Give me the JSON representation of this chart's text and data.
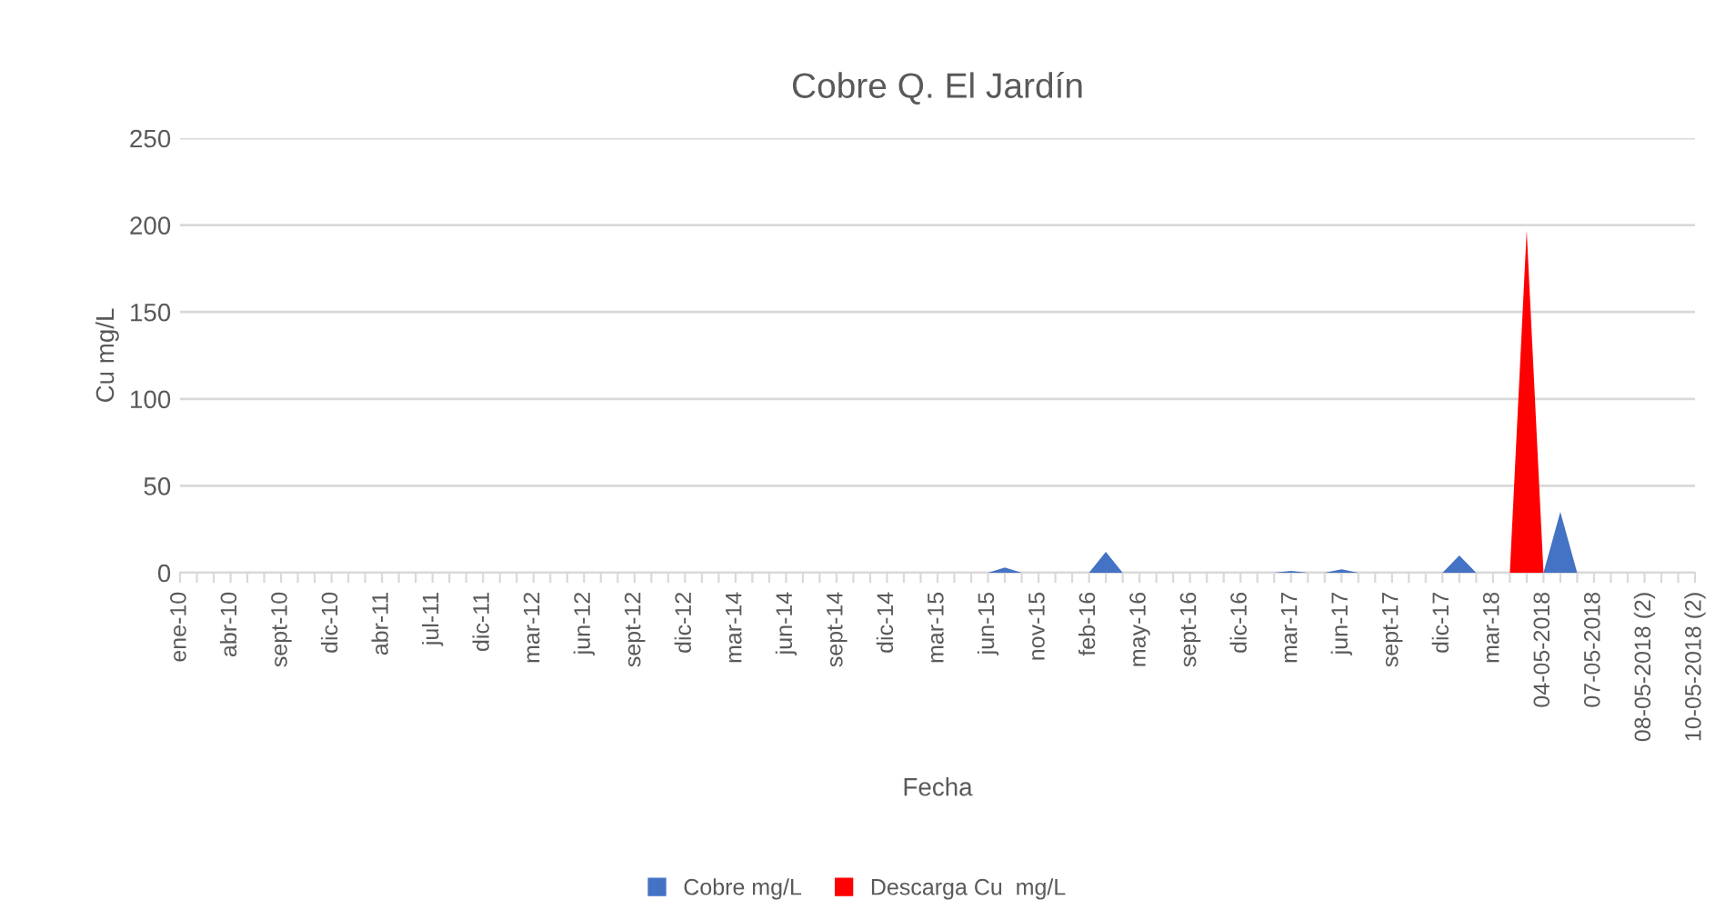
{
  "chart_data": {
    "type": "area",
    "title": "Cobre Q. El Jardín",
    "xlabel": "Fecha",
    "ylabel": "Cu mg/L",
    "categories": [
      "ene-10",
      null,
      null,
      "abr-10",
      null,
      null,
      "sept-10",
      null,
      null,
      "dic-10",
      null,
      null,
      "abr-11",
      null,
      null,
      "jul-11",
      null,
      null,
      "dic-11",
      null,
      null,
      "mar-12",
      null,
      null,
      "jun-12",
      null,
      null,
      "sept-12",
      null,
      null,
      "dic-12",
      null,
      null,
      "mar-14",
      null,
      null,
      "jun-14",
      null,
      null,
      "sept-14",
      null,
      null,
      "dic-14",
      null,
      null,
      "mar-15",
      null,
      null,
      "jun-15",
      null,
      null,
      "nov-15",
      null,
      null,
      "feb-16",
      null,
      null,
      "may-16",
      null,
      null,
      "sept-16",
      null,
      null,
      "dic-16",
      null,
      null,
      "mar-17",
      null,
      null,
      "jun-17",
      null,
      null,
      "sept-17",
      null,
      null,
      "dic-17",
      null,
      null,
      "mar-18",
      null,
      null,
      "04-05-2018",
      null,
      null,
      "07-05-2018",
      null,
      null,
      "08-05-2018 (2)",
      null,
      null,
      "10-05-2018 (2)"
    ],
    "series": [
      {
        "name": "Cobre mg/L",
        "color": "#4472c4",
        "values": [
          0,
          0,
          0,
          0,
          0,
          0,
          0,
          0,
          0,
          0,
          0,
          0,
          0,
          0,
          0,
          0,
          0,
          0,
          0,
          0,
          0,
          0,
          0,
          0,
          0,
          0,
          0,
          0,
          0,
          0,
          0,
          0,
          0,
          0,
          0,
          0,
          0,
          0,
          0,
          0,
          0,
          0,
          0,
          0,
          0,
          0,
          0,
          0,
          0,
          3,
          0,
          0,
          0,
          0,
          0,
          12,
          0,
          0,
          0,
          0,
          0,
          0,
          0,
          0,
          0,
          0,
          1,
          0,
          0,
          2,
          0,
          0,
          0,
          0,
          0,
          0,
          10,
          0,
          0,
          0,
          0,
          0,
          35,
          0,
          0,
          0,
          0,
          0,
          0,
          0,
          0
        ]
      },
      {
        "name": "Descarga Cu  mg/L",
        "color": "#ff0000",
        "values": [
          null,
          null,
          null,
          null,
          null,
          null,
          null,
          null,
          null,
          null,
          null,
          null,
          null,
          null,
          null,
          null,
          null,
          null,
          null,
          null,
          null,
          null,
          null,
          null,
          null,
          null,
          null,
          null,
          null,
          null,
          null,
          null,
          null,
          null,
          null,
          null,
          null,
          null,
          null,
          null,
          null,
          null,
          null,
          null,
          null,
          null,
          null,
          null,
          null,
          null,
          null,
          null,
          null,
          null,
          null,
          null,
          null,
          null,
          null,
          null,
          null,
          null,
          null,
          null,
          null,
          null,
          null,
          null,
          null,
          null,
          null,
          null,
          null,
          null,
          null,
          null,
          null,
          null,
          null,
          0,
          197,
          0,
          null,
          null,
          null,
          null,
          null,
          null,
          null,
          null,
          null
        ]
      }
    ],
    "ylim": [
      0,
      250
    ],
    "yticks": [
      0,
      50,
      100,
      150,
      200,
      250
    ],
    "grid": "y",
    "legend": "bottom"
  }
}
